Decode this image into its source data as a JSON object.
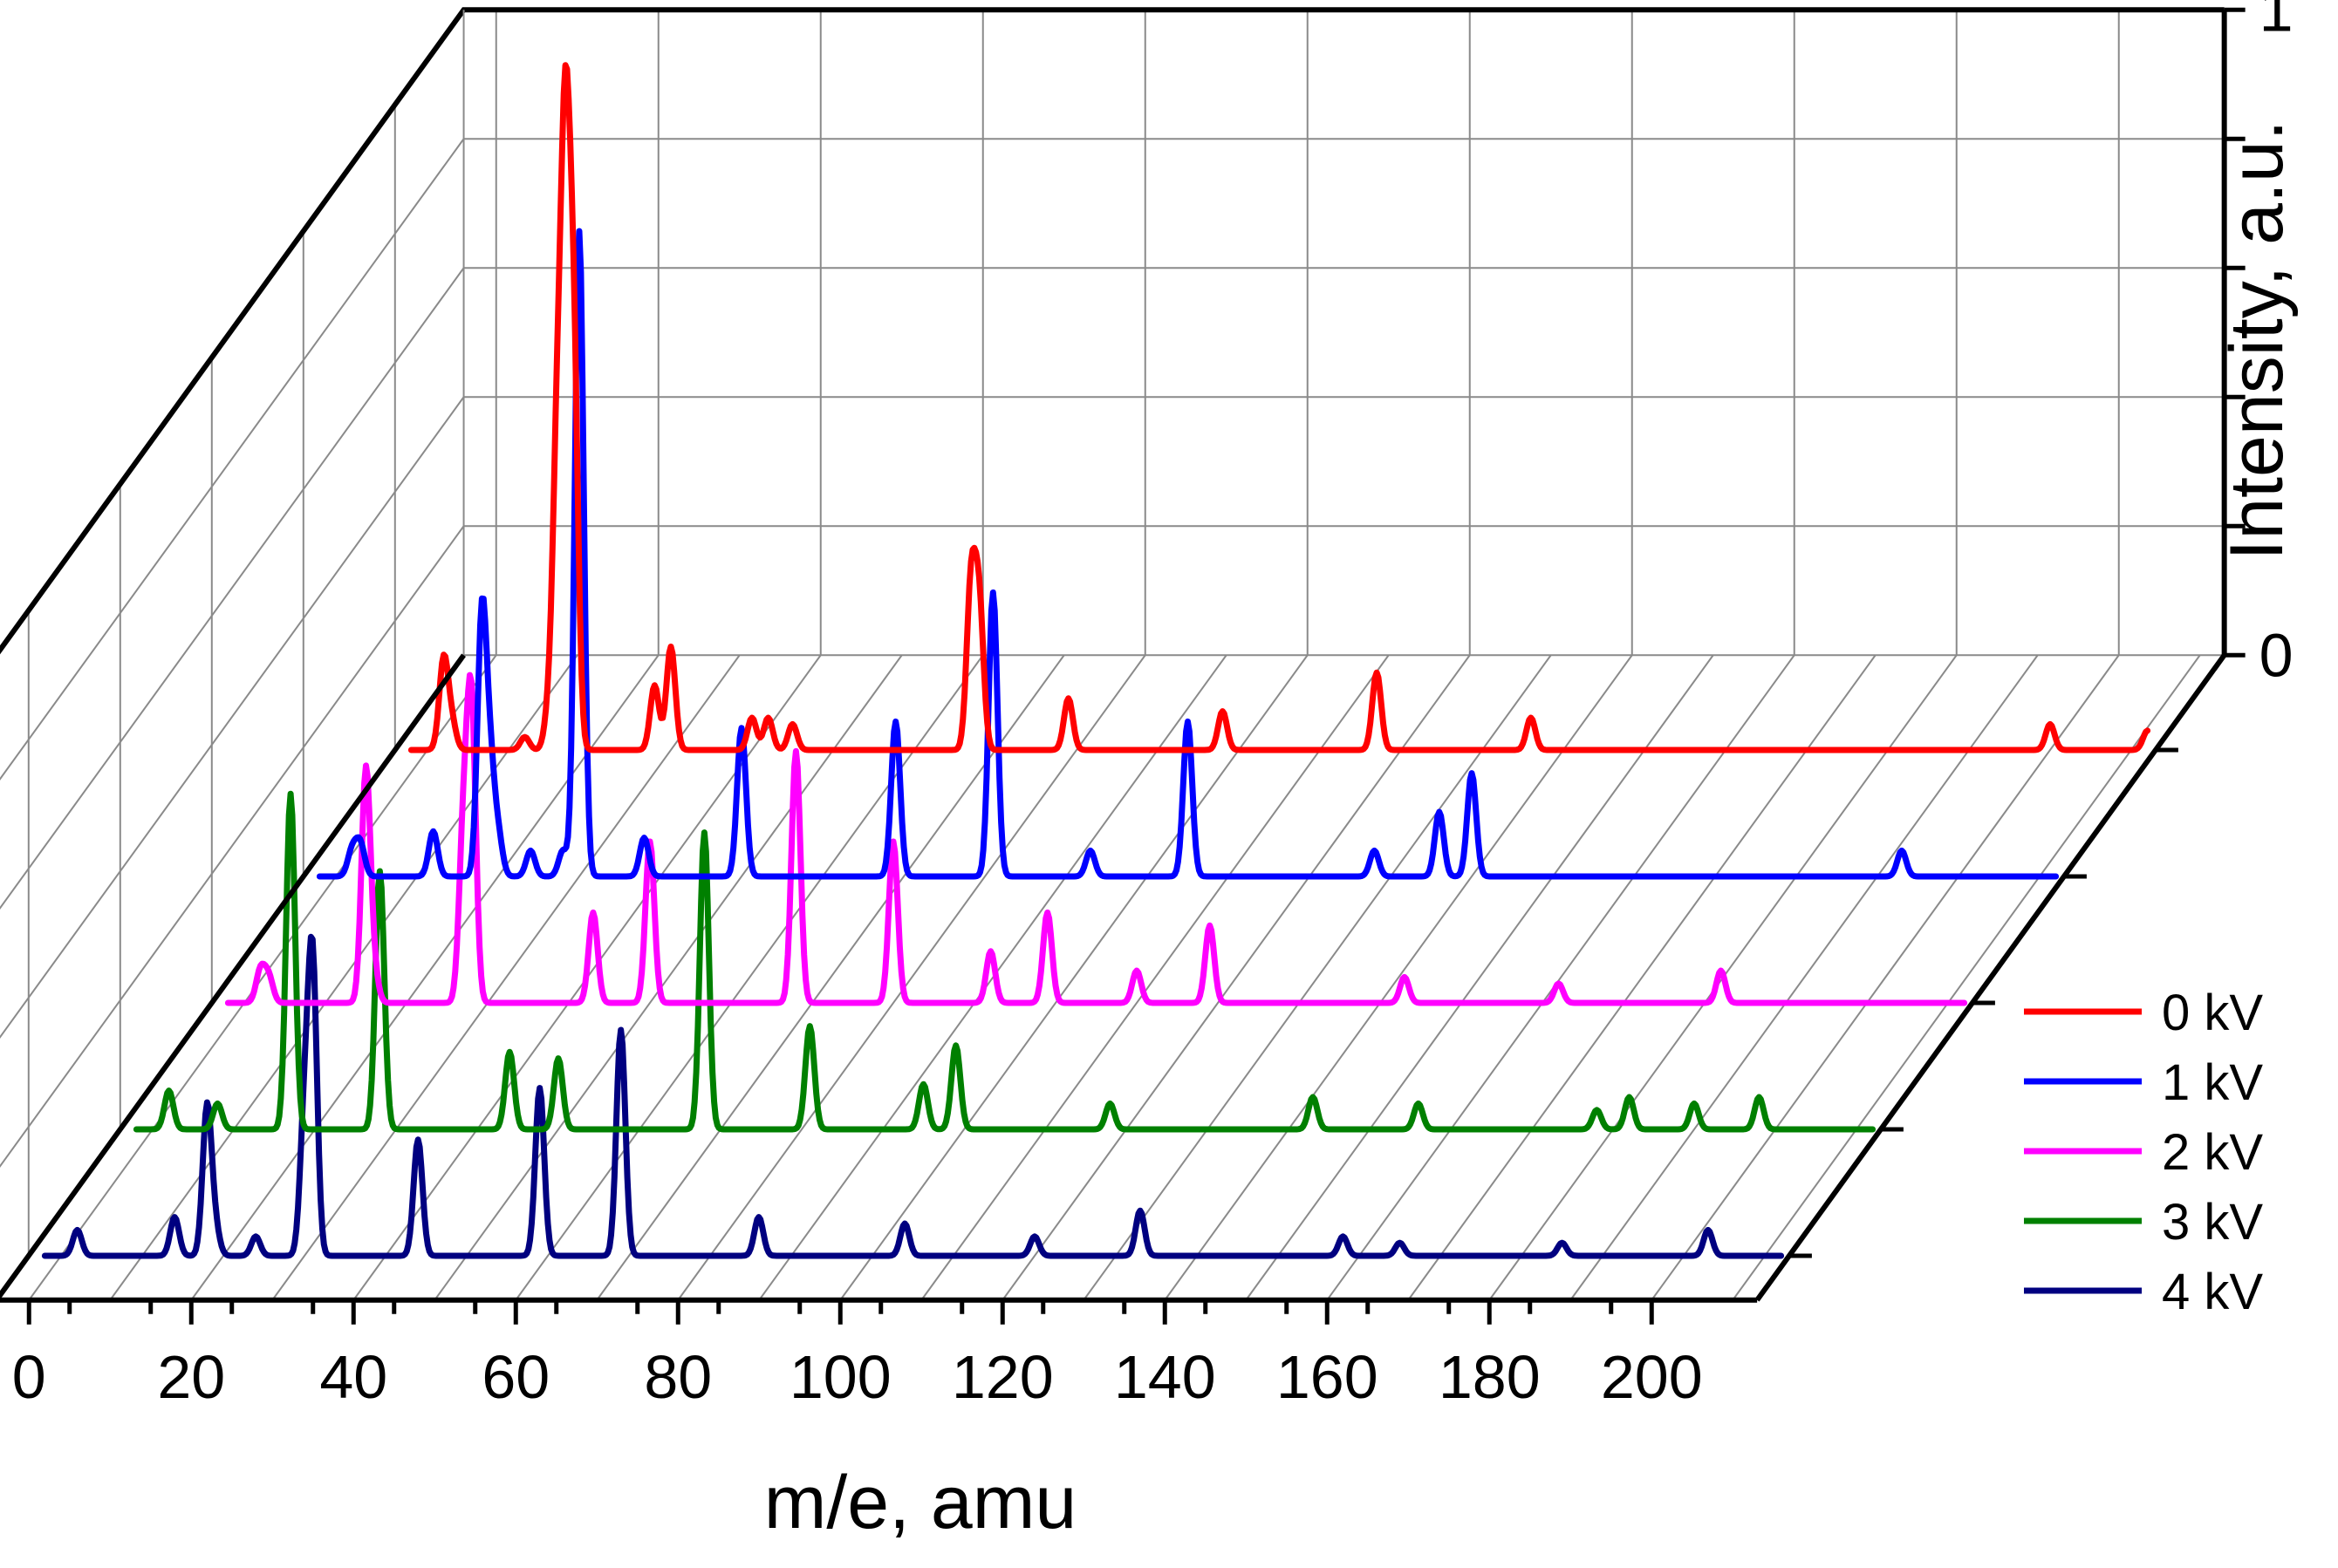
{
  "chart_data": {
    "type": "line",
    "subtype": "3d-waterfall",
    "title": "",
    "xlabel": "m/e, amu",
    "zlabel": "Intensity, a.u.",
    "xlim": [
      0,
      200
    ],
    "zlim": [
      0,
      1
    ],
    "x_ticks": [
      0,
      20,
      40,
      60,
      80,
      100,
      120,
      140,
      160,
      180,
      200
    ],
    "x_tick_labels": [
      "0",
      "20",
      "40",
      "60",
      "80",
      "100",
      "120",
      "140",
      "160",
      "180",
      "200"
    ],
    "z_tick_labels": [
      "0",
      "1"
    ],
    "grid": true,
    "legend_position": "right",
    "series": [
      {
        "name": "0 kV",
        "color": "#ff0000",
        "peaks": [
          [
            2,
            0.14
          ],
          [
            3,
            0.04
          ],
          [
            12,
            0.02
          ],
          [
            15,
            0.06
          ],
          [
            16,
            0.45
          ],
          [
            17,
            0.86
          ],
          [
            18,
            0.6
          ],
          [
            28,
            0.1
          ],
          [
            30,
            0.16
          ],
          [
            40,
            0.05
          ],
          [
            42,
            0.05
          ],
          [
            45,
            0.04
          ],
          [
            67,
            0.25
          ],
          [
            68,
            0.22
          ],
          [
            79,
            0.08
          ],
          [
            98,
            0.06
          ],
          [
            117,
            0.12
          ],
          [
            136,
            0.05
          ],
          [
            200,
            0.04
          ],
          [
            212,
            0.03
          ]
        ]
      },
      {
        "name": "1 kV",
        "color": "#0000ff",
        "peaks": [
          [
            2,
            0.04
          ],
          [
            3,
            0.05
          ],
          [
            12,
            0.07
          ],
          [
            18,
            0.4
          ],
          [
            19,
            0.16
          ],
          [
            20,
            0.06
          ],
          [
            24,
            0.04
          ],
          [
            28,
            0.04
          ],
          [
            30,
            1.0
          ],
          [
            38,
            0.06
          ],
          [
            50,
            0.23
          ],
          [
            69,
            0.24
          ],
          [
            81,
            0.44
          ],
          [
            93,
            0.04
          ],
          [
            105,
            0.24
          ],
          [
            128,
            0.04
          ],
          [
            136,
            0.1
          ],
          [
            140,
            0.16
          ],
          [
            193,
            0.04
          ]
        ]
      },
      {
        "name": "2 kV",
        "color": "#ff00ff",
        "peaks": [
          [
            2,
            0.05
          ],
          [
            3,
            0.04
          ],
          [
            15,
            0.36
          ],
          [
            16,
            0.04
          ],
          [
            27,
            0.25
          ],
          [
            28,
            0.45
          ],
          [
            43,
            0.14
          ],
          [
            50,
            0.25
          ],
          [
            68,
            0.39
          ],
          [
            80,
            0.25
          ],
          [
            92,
            0.08
          ],
          [
            99,
            0.14
          ],
          [
            110,
            0.05
          ],
          [
            119,
            0.12
          ],
          [
            143,
            0.04
          ],
          [
            162,
            0.03
          ],
          [
            182,
            0.05
          ]
        ]
      },
      {
        "name": "3 kV",
        "color": "#008000",
        "peaks": [
          [
            2,
            0.06
          ],
          [
            8,
            0.04
          ],
          [
            17,
            0.52
          ],
          [
            28,
            0.4
          ],
          [
            44,
            0.12
          ],
          [
            50,
            0.11
          ],
          [
            68,
            0.46
          ],
          [
            81,
            0.16
          ],
          [
            95,
            0.07
          ],
          [
            99,
            0.13
          ],
          [
            118,
            0.04
          ],
          [
            143,
            0.05
          ],
          [
            156,
            0.04
          ],
          [
            178,
            0.03
          ],
          [
            182,
            0.05
          ],
          [
            190,
            0.04
          ],
          [
            198,
            0.05
          ]
        ]
      },
      {
        "name": "4 kV",
        "color": "#000080",
        "peaks": [
          [
            2,
            0.04
          ],
          [
            14,
            0.06
          ],
          [
            18,
            0.23
          ],
          [
            19,
            0.04
          ],
          [
            24,
            0.03
          ],
          [
            30,
            0.21
          ],
          [
            31,
            0.45
          ],
          [
            44,
            0.18
          ],
          [
            59,
            0.26
          ],
          [
            69,
            0.35
          ],
          [
            86,
            0.06
          ],
          [
            104,
            0.05
          ],
          [
            120,
            0.03
          ],
          [
            133,
            0.07
          ],
          [
            158,
            0.03
          ],
          [
            165,
            0.02
          ],
          [
            185,
            0.02
          ],
          [
            203,
            0.04
          ]
        ]
      }
    ]
  }
}
